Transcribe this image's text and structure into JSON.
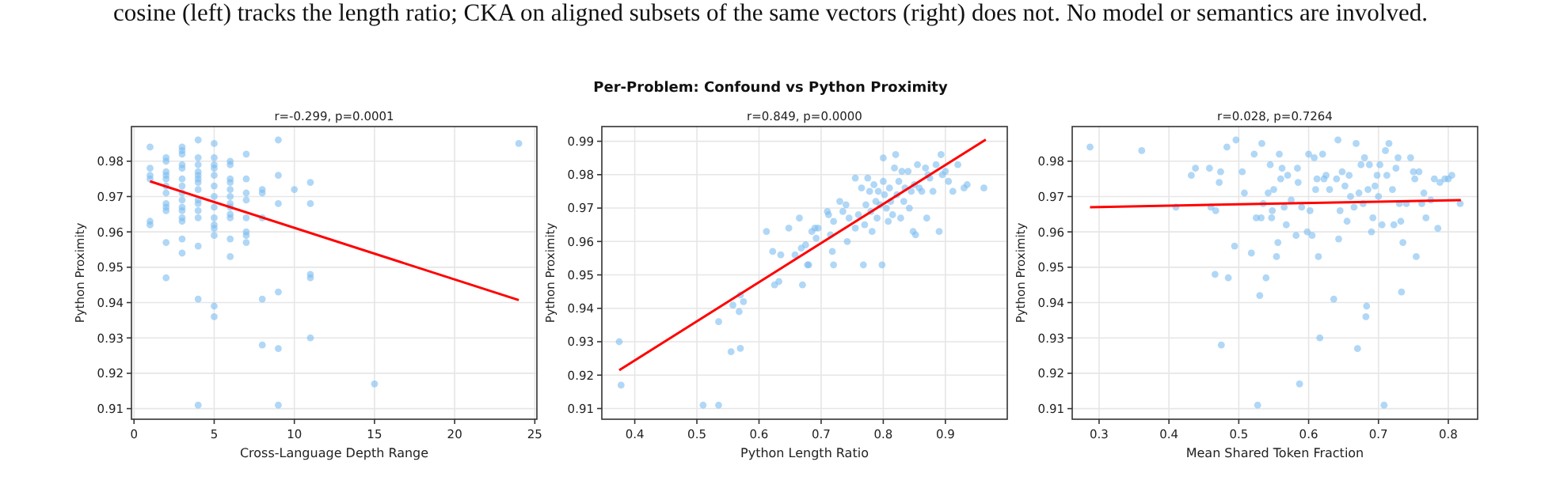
{
  "chart_data": [
    {
      "type": "scatter",
      "title": "r=-0.299, p=0.0001",
      "xlabel": "Cross-Language Depth Range",
      "ylabel": "Python Proximity",
      "annotations": [
        "cosine (left) tracks the length ratio; CKA on aligned subsets of the same vectors (right) does not. No model or semantics are involved.",
        "Per-Problem: Confound vs Python Proximity"
      ],
      "grid": true,
      "marker": "circle",
      "xlim": [
        -0.16,
        25.13
      ],
      "xticks": [
        0,
        5,
        10,
        15,
        20,
        25
      ],
      "ylim": [
        0.907,
        0.9898
      ],
      "yticks": [
        0.91,
        0.92,
        0.93,
        0.94,
        0.95,
        0.96,
        0.97,
        0.98
      ],
      "series": [
        {
          "color": "#7cbcf0",
          "x": [
            1,
            1,
            1,
            1,
            1,
            1,
            2,
            2,
            2,
            2,
            2,
            2,
            2,
            2,
            2,
            2,
            2,
            2,
            3,
            3,
            3,
            3,
            3,
            3,
            3,
            3,
            3,
            3,
            3,
            3,
            3,
            3,
            3,
            4,
            4,
            4,
            4,
            4,
            4,
            4,
            4,
            4,
            4,
            4,
            4,
            4,
            4,
            4,
            5,
            5,
            5,
            5,
            5,
            5,
            5,
            5,
            5,
            5,
            5,
            5,
            5,
            5,
            6,
            6,
            6,
            6,
            6,
            6,
            6,
            6,
            6,
            6,
            6,
            6,
            7,
            7,
            7,
            7,
            7,
            7,
            7,
            7,
            8,
            8,
            8,
            8,
            8,
            9,
            9,
            9,
            9,
            9,
            9,
            10,
            11,
            11,
            11,
            11,
            11,
            15,
            24
          ],
          "values": [
            0.984,
            0.978,
            0.976,
            0.975,
            0.963,
            0.962,
            0.981,
            0.98,
            0.977,
            0.976,
            0.975,
            0.973,
            0.971,
            0.968,
            0.967,
            0.966,
            0.957,
            0.947,
            0.984,
            0.983,
            0.982,
            0.979,
            0.978,
            0.975,
            0.973,
            0.971,
            0.969,
            0.967,
            0.966,
            0.964,
            0.963,
            0.958,
            0.954,
            0.986,
            0.981,
            0.979,
            0.977,
            0.976,
            0.975,
            0.974,
            0.972,
            0.969,
            0.968,
            0.966,
            0.964,
            0.956,
            0.941,
            0.911,
            0.985,
            0.981,
            0.979,
            0.978,
            0.976,
            0.973,
            0.97,
            0.967,
            0.964,
            0.962,
            0.961,
            0.959,
            0.939,
            0.936,
            0.98,
            0.979,
            0.975,
            0.974,
            0.972,
            0.97,
            0.968,
            0.967,
            0.965,
            0.964,
            0.958,
            0.953,
            0.982,
            0.975,
            0.971,
            0.969,
            0.964,
            0.96,
            0.959,
            0.957,
            0.972,
            0.971,
            0.964,
            0.941,
            0.928,
            0.986,
            0.976,
            0.968,
            0.943,
            0.927,
            0.911,
            0.972,
            0.974,
            0.968,
            0.948,
            0.947,
            0.93,
            0.917,
            0.985
          ]
        },
        {
          "type": "line",
          "marker": "none",
          "color": "#ff0000",
          "x": [
            1,
            24
          ],
          "values": [
            0.9743,
            0.9407
          ]
        }
      ]
    },
    {
      "type": "scatter",
      "title": "r=0.849, p=0.0000",
      "xlabel": "Python Length Ratio",
      "ylabel": "Python Proximity",
      "grid": true,
      "marker": "circle",
      "xlim": [
        0.347,
        0.9996
      ],
      "xticks": [
        0.4,
        0.5,
        0.6,
        0.7,
        0.8,
        0.9
      ],
      "ylim": [
        0.9068,
        0.9944
      ],
      "yticks": [
        0.91,
        0.92,
        0.93,
        0.94,
        0.95,
        0.96,
        0.97,
        0.98,
        0.99
      ],
      "series": [
        {
          "color": "#7cbcf0",
          "x": [
            0.375,
            0.378,
            0.51,
            0.535,
            0.535,
            0.555,
            0.558,
            0.568,
            0.57,
            0.57,
            0.575,
            0.612,
            0.622,
            0.625,
            0.632,
            0.635,
            0.648,
            0.658,
            0.665,
            0.668,
            0.67,
            0.675,
            0.678,
            0.68,
            0.685,
            0.69,
            0.692,
            0.695,
            0.71,
            0.712,
            0.715,
            0.718,
            0.72,
            0.72,
            0.73,
            0.735,
            0.74,
            0.742,
            0.745,
            0.755,
            0.755,
            0.76,
            0.765,
            0.768,
            0.77,
            0.772,
            0.775,
            0.778,
            0.78,
            0.782,
            0.785,
            0.788,
            0.79,
            0.792,
            0.795,
            0.798,
            0.8,
            0.8,
            0.802,
            0.805,
            0.808,
            0.81,
            0.812,
            0.815,
            0.818,
            0.82,
            0.822,
            0.825,
            0.828,
            0.83,
            0.833,
            0.835,
            0.84,
            0.842,
            0.845,
            0.848,
            0.85,
            0.852,
            0.855,
            0.858,
            0.862,
            0.868,
            0.87,
            0.872,
            0.875,
            0.88,
            0.885,
            0.89,
            0.893,
            0.895,
            0.9,
            0.905,
            0.912,
            0.92,
            0.93,
            0.935,
            0.962
          ],
          "values": [
            0.93,
            0.917,
            0.911,
            0.911,
            0.936,
            0.927,
            0.941,
            0.939,
            0.928,
            0.944,
            0.942,
            0.963,
            0.957,
            0.947,
            0.948,
            0.956,
            0.964,
            0.956,
            0.967,
            0.958,
            0.947,
            0.959,
            0.953,
            0.953,
            0.963,
            0.964,
            0.961,
            0.964,
            0.969,
            0.968,
            0.962,
            0.957,
            0.953,
            0.966,
            0.972,
            0.969,
            0.971,
            0.96,
            0.967,
            0.979,
            0.964,
            0.968,
            0.976,
            0.953,
            0.965,
            0.971,
            0.979,
            0.975,
            0.969,
            0.963,
            0.977,
            0.972,
            0.967,
            0.975,
            0.971,
            0.953,
            0.985,
            0.978,
            0.974,
            0.97,
            0.966,
            0.976,
            0.972,
            0.968,
            0.982,
            0.986,
            0.974,
            0.978,
            0.967,
            0.981,
            0.972,
            0.976,
            0.981,
            0.97,
            0.975,
            0.963,
            0.977,
            0.962,
            0.983,
            0.976,
            0.975,
            0.982,
            0.967,
            0.98,
            0.979,
            0.975,
            0.983,
            0.963,
            0.986,
            0.98,
            0.981,
            0.978,
            0.975,
            0.983,
            0.976,
            0.977,
            0.976
          ]
        },
        {
          "type": "line",
          "marker": "none",
          "color": "#ff0000",
          "x": [
            0.375,
            0.965
          ],
          "values": [
            0.9215,
            0.9905
          ]
        }
      ]
    },
    {
      "type": "scatter",
      "title": "r=0.028, p=0.7264",
      "xlabel": "Mean Shared Token Fraction",
      "ylabel": "Python Proximity",
      "grid": true,
      "marker": "circle",
      "xlim": [
        0.2615,
        0.842
      ],
      "xticks": [
        0.3,
        0.4,
        0.5,
        0.6,
        0.7,
        0.8
      ],
      "ylim": [
        0.907,
        0.9898
      ],
      "yticks": [
        0.91,
        0.92,
        0.93,
        0.94,
        0.95,
        0.96,
        0.97,
        0.98
      ],
      "series": [
        {
          "color": "#7cbcf0",
          "x": [
            0.287,
            0.361,
            0.41,
            0.432,
            0.438,
            0.458,
            0.46,
            0.466,
            0.467,
            0.472,
            0.474,
            0.475,
            0.483,
            0.485,
            0.494,
            0.496,
            0.505,
            0.508,
            0.518,
            0.522,
            0.525,
            0.527,
            0.53,
            0.532,
            0.533,
            0.535,
            0.539,
            0.542,
            0.545,
            0.547,
            0.548,
            0.55,
            0.554,
            0.556,
            0.558,
            0.56,
            0.562,
            0.565,
            0.568,
            0.57,
            0.575,
            0.582,
            0.584,
            0.585,
            0.587,
            0.59,
            0.598,
            0.6,
            0.602,
            0.605,
            0.608,
            0.61,
            0.612,
            0.614,
            0.616,
            0.62,
            0.622,
            0.625,
            0.63,
            0.636,
            0.64,
            0.642,
            0.643,
            0.645,
            0.648,
            0.652,
            0.655,
            0.658,
            0.66,
            0.665,
            0.668,
            0.67,
            0.672,
            0.675,
            0.678,
            0.68,
            0.682,
            0.683,
            0.685,
            0.687,
            0.69,
            0.692,
            0.695,
            0.698,
            0.7,
            0.702,
            0.705,
            0.708,
            0.71,
            0.712,
            0.715,
            0.72,
            0.722,
            0.725,
            0.728,
            0.73,
            0.732,
            0.733,
            0.735,
            0.74,
            0.746,
            0.75,
            0.752,
            0.754,
            0.758,
            0.762,
            0.765,
            0.768,
            0.775,
            0.78,
            0.785,
            0.788,
            0.795,
            0.8,
            0.805,
            0.817
          ],
          "values": [
            0.984,
            0.983,
            0.967,
            0.976,
            0.978,
            0.978,
            0.967,
            0.948,
            0.966,
            0.974,
            0.977,
            0.928,
            0.984,
            0.947,
            0.956,
            0.986,
            0.977,
            0.971,
            0.954,
            0.982,
            0.964,
            0.911,
            0.942,
            0.964,
            0.985,
            0.968,
            0.947,
            0.971,
            0.979,
            0.964,
            0.966,
            0.972,
            0.953,
            0.957,
            0.982,
            0.975,
            0.978,
            0.967,
            0.962,
            0.976,
            0.969,
            0.959,
            0.978,
            0.974,
            0.917,
            0.967,
            0.96,
            0.982,
            0.966,
            0.959,
            0.981,
            0.972,
            0.975,
            0.953,
            0.93,
            0.982,
            0.975,
            0.976,
            0.972,
            0.941,
            0.975,
            0.986,
            0.958,
            0.966,
            0.977,
            0.973,
            0.963,
            0.976,
            0.97,
            0.967,
            0.985,
            0.927,
            0.971,
            0.979,
            0.968,
            0.981,
            0.936,
            0.939,
            0.972,
            0.979,
            0.96,
            0.964,
            0.973,
            0.976,
            0.97,
            0.979,
            0.962,
            0.911,
            0.983,
            0.976,
            0.985,
            0.972,
            0.962,
            0.978,
            0.981,
            0.968,
            0.963,
            0.943,
            0.957,
            0.968,
            0.981,
            0.977,
            0.975,
            0.953,
            0.977,
            0.968,
            0.971,
            0.964,
            0.969,
            0.975,
            0.961,
            0.974,
            0.975,
            0.975,
            0.976,
            0.968
          ]
        },
        {
          "type": "line",
          "marker": "none",
          "color": "#ff0000",
          "x": [
            0.287,
            0.818
          ],
          "values": [
            0.967,
            0.969
          ]
        }
      ]
    }
  ]
}
